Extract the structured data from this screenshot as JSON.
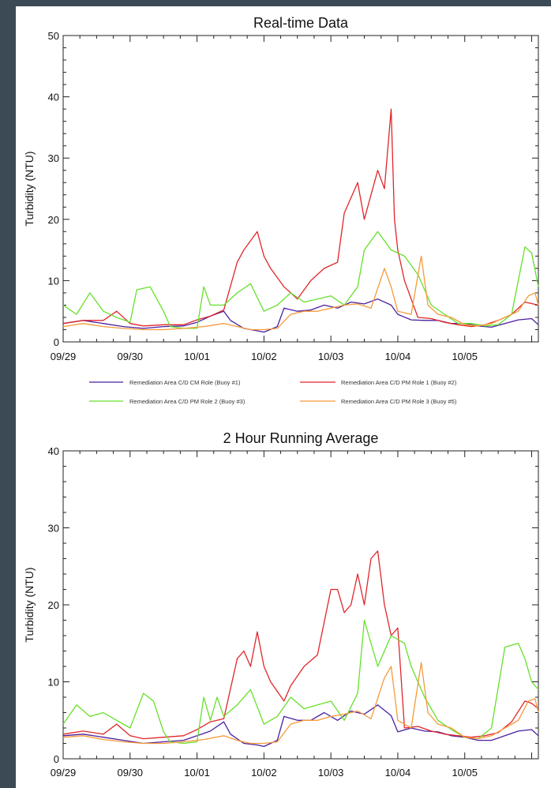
{
  "colors": {
    "page_background": "#3b4a55",
    "buoy1": "#4b1fa0",
    "buoy2": "#e0262b",
    "buoy3": "#66e02a",
    "buoy5": "#f59a3a"
  },
  "chart_data": [
    {
      "type": "line",
      "title": "Real-time Data",
      "xlabel": "",
      "ylabel": "Turbidity (NTU)",
      "ylim": [
        0,
        50
      ],
      "yticks": [
        0,
        10,
        20,
        30,
        40,
        50
      ],
      "xlim": [
        0,
        7.1
      ],
      "xtick_positions": [
        0,
        1,
        2,
        3,
        4,
        5,
        6
      ],
      "xtick_labels": [
        "09/29",
        "09/30",
        "10/01",
        "10/02",
        "10/03",
        "10/04",
        "10/05"
      ],
      "legend": [
        "Remediation Area C/D CM Role (Buoy #1)",
        "Remediation Area C/D PM Role 1 (Buoy #2)",
        "Remediation Area C/D PM Role 2 (Buoy #3)",
        "Remediation Area C/D PM Role 3 (Buoy #5)"
      ],
      "legend_placement": "below",
      "series": [
        {
          "name": "Remediation Area C/D CM Role (Buoy #1)",
          "color": "#4b1fa0",
          "x": [
            0,
            0.3,
            0.6,
            0.9,
            1.2,
            1.5,
            1.8,
            2.0,
            2.2,
            2.4,
            2.5,
            2.7,
            2.9,
            3.0,
            3.2,
            3.3,
            3.5,
            3.7,
            3.9,
            4.1,
            4.3,
            4.5,
            4.7,
            4.9,
            5.0,
            5.2,
            5.4,
            5.6,
            5.8,
            6.0,
            6.2,
            6.4,
            6.6,
            6.8,
            7.0,
            7.1
          ],
          "y": [
            3,
            3.5,
            3,
            2.5,
            2.2,
            2.5,
            2.6,
            3.2,
            4.2,
            5,
            3.5,
            2.2,
            1.8,
            1.6,
            2.5,
            5.5,
            5,
            5.2,
            6,
            5.5,
            6.5,
            6.2,
            7,
            6,
            4.5,
            3.6,
            3.5,
            3.5,
            3,
            3,
            2.6,
            2.4,
            3,
            3.6,
            3.8,
            2.8
          ]
        },
        {
          "name": "Remediation Area C/D PM Role 1 (Buoy #2)",
          "color": "#e0262b",
          "x": [
            0,
            0.3,
            0.6,
            0.8,
            1.0,
            1.2,
            1.5,
            1.8,
            2.0,
            2.2,
            2.4,
            2.6,
            2.7,
            2.9,
            3.0,
            3.1,
            3.3,
            3.5,
            3.7,
            3.9,
            4.1,
            4.2,
            4.4,
            4.5,
            4.7,
            4.8,
            4.9,
            4.95,
            5.0,
            5.1,
            5.3,
            5.5,
            5.7,
            5.9,
            6.1,
            6.3,
            6.5,
            6.7,
            6.9,
            7.1
          ],
          "y": [
            3,
            3.5,
            3.5,
            5,
            3,
            2.6,
            2.8,
            2.8,
            3.6,
            4.2,
            5.2,
            13,
            15,
            18,
            14,
            12,
            9,
            7,
            10,
            12,
            13,
            21,
            26,
            20,
            28,
            25,
            38,
            20,
            15,
            10,
            4,
            3.8,
            3.2,
            2.8,
            2.5,
            2.8,
            3.5,
            4.5,
            6.5,
            6
          ]
        },
        {
          "name": "Remediation Area C/D PM Role 2 (Buoy #3)",
          "color": "#66e02a",
          "x": [
            0,
            0.2,
            0.4,
            0.6,
            0.8,
            1.0,
            1.1,
            1.3,
            1.5,
            1.6,
            1.8,
            2.0,
            2.1,
            2.2,
            2.4,
            2.6,
            2.8,
            3.0,
            3.2,
            3.4,
            3.6,
            3.8,
            4.0,
            4.2,
            4.4,
            4.5,
            4.7,
            4.9,
            5.1,
            5.3,
            5.5,
            5.7,
            5.9,
            6.1,
            6.3,
            6.5,
            6.7,
            6.9,
            7.0,
            7.1
          ],
          "y": [
            6,
            4.5,
            8,
            5,
            4,
            3.2,
            8.5,
            9,
            5,
            2.5,
            2.2,
            2.2,
            9,
            6,
            6,
            8,
            9.5,
            5,
            6,
            8,
            6.5,
            7,
            7.5,
            6,
            9,
            15,
            18,
            15,
            14,
            11,
            6,
            4.5,
            3,
            3,
            2.6,
            2.8,
            4.5,
            15.5,
            14.5,
            9
          ]
        },
        {
          "name": "Remediation Area C/D PM Role 3 (Buoy #5)",
          "color": "#f59a3a",
          "x": [
            0,
            0.3,
            0.6,
            0.9,
            1.2,
            1.5,
            1.8,
            2.1,
            2.4,
            2.6,
            2.8,
            3.0,
            3.2,
            3.4,
            3.6,
            3.8,
            4.0,
            4.2,
            4.4,
            4.6,
            4.8,
            4.9,
            5.0,
            5.2,
            5.35,
            5.45,
            5.6,
            5.8,
            6.0,
            6.2,
            6.4,
            6.6,
            6.8,
            6.95,
            7.05,
            7.1
          ],
          "y": [
            2.5,
            3,
            2.5,
            2.2,
            2,
            2,
            2.2,
            2.5,
            3,
            2.5,
            2,
            2,
            2.2,
            4.5,
            5,
            5,
            5.5,
            6,
            6.2,
            5.5,
            12,
            9,
            5,
            4.5,
            14,
            6,
            4.5,
            4,
            2.8,
            2.6,
            3,
            4,
            5,
            7.5,
            8,
            6
          ]
        }
      ]
    },
    {
      "type": "line",
      "title": "2 Hour Running Average",
      "xlabel": "",
      "ylabel": "Turbidity (NTU)",
      "ylim": [
        0,
        40
      ],
      "yticks": [
        0,
        10,
        20,
        30,
        40
      ],
      "xlim": [
        0,
        7.1
      ],
      "xtick_positions": [
        0,
        1,
        2,
        3,
        4,
        5,
        6
      ],
      "xtick_labels": [
        "09/29",
        "09/30",
        "10/01",
        "10/02",
        "10/03",
        "10/04",
        "10/05"
      ],
      "series": [
        {
          "name": "Remediation Area C/D CM Role (Buoy #1)",
          "color": "#4b1fa0",
          "x": [
            0,
            0.3,
            0.6,
            0.9,
            1.2,
            1.5,
            1.8,
            2.0,
            2.2,
            2.4,
            2.5,
            2.7,
            2.9,
            3.0,
            3.2,
            3.3,
            3.5,
            3.7,
            3.9,
            4.1,
            4.3,
            4.5,
            4.7,
            4.9,
            5.0,
            5.2,
            5.4,
            5.6,
            5.8,
            6.0,
            6.2,
            6.4,
            6.6,
            6.8,
            7.0,
            7.1
          ],
          "y": [
            3,
            3.2,
            2.8,
            2.4,
            2,
            2.2,
            2.4,
            3,
            3.6,
            4.8,
            3.2,
            2,
            1.8,
            1.6,
            2.4,
            5.5,
            5,
            5,
            6,
            5,
            6.2,
            5.8,
            7,
            5.6,
            3.5,
            4,
            3.6,
            3.5,
            3,
            2.8,
            2.4,
            2.4,
            3,
            3.6,
            3.8,
            3
          ]
        },
        {
          "name": "Remediation Area C/D PM Role 1 (Buoy #2)",
          "color": "#e0262b",
          "x": [
            0,
            0.3,
            0.6,
            0.8,
            1.0,
            1.2,
            1.5,
            1.8,
            2.0,
            2.2,
            2.4,
            2.6,
            2.7,
            2.8,
            2.9,
            3.0,
            3.1,
            3.3,
            3.4,
            3.6,
            3.8,
            4.0,
            4.1,
            4.2,
            4.3,
            4.4,
            4.5,
            4.6,
            4.7,
            4.8,
            4.9,
            5.0,
            5.1,
            5.3,
            5.5,
            5.7,
            5.9,
            6.1,
            6.3,
            6.5,
            6.7,
            6.9,
            7.0,
            7.1
          ],
          "y": [
            3.2,
            3.6,
            3.2,
            4.5,
            3,
            2.6,
            2.8,
            3,
            3.8,
            4.8,
            5.2,
            13,
            14,
            12,
            16.5,
            12,
            10,
            7.5,
            9.5,
            12,
            13.5,
            22,
            22,
            19,
            20,
            24,
            20,
            26,
            27,
            20,
            16,
            17,
            4,
            4.2,
            3.6,
            3.2,
            3,
            2.8,
            3,
            3.4,
            4.8,
            7.5,
            7.2,
            6.5
          ]
        },
        {
          "name": "Remediation Area C/D PM Role 2 (Buoy #3)",
          "color": "#66e02a",
          "x": [
            0,
            0.2,
            0.4,
            0.6,
            0.8,
            1.0,
            1.2,
            1.35,
            1.5,
            1.6,
            1.8,
            2.0,
            2.1,
            2.2,
            2.3,
            2.4,
            2.6,
            2.8,
            3.0,
            3.2,
            3.4,
            3.6,
            3.8,
            4.0,
            4.2,
            4.4,
            4.5,
            4.7,
            4.9,
            5.1,
            5.2,
            5.4,
            5.6,
            5.8,
            6.0,
            6.2,
            6.4,
            6.6,
            6.8,
            6.9,
            7.0,
            7.1
          ],
          "y": [
            4.5,
            7,
            5.5,
            6,
            5,
            4,
            8.5,
            7.5,
            3.5,
            2.2,
            2,
            2.2,
            8,
            5,
            8,
            5.5,
            7,
            9,
            4.5,
            5.5,
            8,
            6.5,
            7,
            7.5,
            5,
            8.5,
            18,
            12,
            16,
            15,
            12,
            8,
            5,
            3.8,
            2.8,
            2.6,
            4,
            14.5,
            15,
            13,
            10,
            9
          ]
        },
        {
          "name": "Remediation Area C/D PM Role 3 (Buoy #5)",
          "color": "#f59a3a",
          "x": [
            0,
            0.3,
            0.6,
            0.9,
            1.2,
            1.5,
            1.8,
            2.1,
            2.4,
            2.6,
            2.8,
            3.0,
            3.2,
            3.4,
            3.6,
            3.8,
            4.0,
            4.2,
            4.4,
            4.6,
            4.8,
            4.9,
            5.0,
            5.2,
            5.35,
            5.45,
            5.6,
            5.8,
            6.0,
            6.2,
            6.4,
            6.6,
            6.8,
            6.95,
            7.05,
            7.1
          ],
          "y": [
            2.8,
            3,
            2.5,
            2.2,
            2,
            2,
            2.2,
            2.5,
            3,
            2.4,
            2,
            2,
            2.2,
            4.5,
            5,
            5,
            5.5,
            5.8,
            6.2,
            5.2,
            10.5,
            12,
            5,
            4,
            12.5,
            6,
            4.5,
            4,
            2.8,
            2.6,
            3,
            4,
            5,
            7.5,
            7.8,
            6
          ]
        }
      ]
    }
  ]
}
